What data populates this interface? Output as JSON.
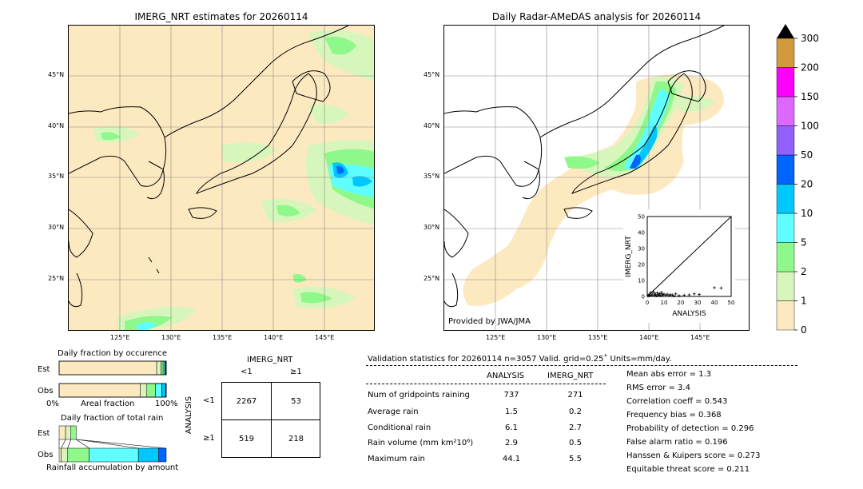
{
  "colors": {
    "ocean": "#fde9c0",
    "land_outline": "#000000",
    "grid": "#888888",
    "scale": [
      "#fde9c0",
      "#d7f6bc",
      "#8ff88a",
      "#5fffff",
      "#00c8ff",
      "#0064ff",
      "#9160ff",
      "#dc68ff",
      "#ff00ff",
      "#d29a3c"
    ]
  },
  "left_map": {
    "title": "IMERG_NRT estimates for 20260114",
    "lat_labels": [
      "45°N",
      "40°N",
      "35°N",
      "30°N",
      "25°N"
    ],
    "lon_labels": [
      "125°E",
      "130°E",
      "135°E",
      "140°E",
      "145°E"
    ]
  },
  "right_map": {
    "title": "Daily Radar-AMeDAS analysis for 20260114",
    "lat_labels": [
      "45°N",
      "40°N",
      "35°N",
      "30°N",
      "25°N"
    ],
    "lon_labels": [
      "125°E",
      "130°E",
      "135°E",
      "140°E",
      "145°E"
    ],
    "credit": "Provided by JWA/JMA"
  },
  "colorbar": {
    "labels": [
      "0",
      "1",
      "2",
      "5",
      "10",
      "20",
      "50",
      "100",
      "150",
      "200",
      "300"
    ]
  },
  "chart_data": [
    {
      "type": "scatter",
      "title": "",
      "xlabel": "ANALYSIS",
      "ylabel": "IMERG_NRT",
      "xlim": [
        0,
        50
      ],
      "ylim": [
        0,
        50
      ],
      "xticks": [
        "0",
        "10",
        "20",
        "30",
        "40",
        "50"
      ],
      "yticks": [
        "0",
        "10",
        "20",
        "30",
        "40",
        "50"
      ],
      "points": [
        [
          0.5,
          0.3
        ],
        [
          1,
          1.2
        ],
        [
          1.5,
          0.5
        ],
        [
          2,
          2.5
        ],
        [
          2.5,
          0.8
        ],
        [
          3,
          1.5
        ],
        [
          3.5,
          3
        ],
        [
          4,
          0.6
        ],
        [
          4.5,
          2
        ],
        [
          5,
          1
        ],
        [
          5.5,
          0.4
        ],
        [
          6,
          2.2
        ],
        [
          6.5,
          1.1
        ],
        [
          7,
          0.7
        ],
        [
          7.5,
          1.8
        ],
        [
          8,
          0.5
        ],
        [
          8.5,
          2.5
        ],
        [
          9,
          1.2
        ],
        [
          9.5,
          0.9
        ],
        [
          10,
          1.5
        ],
        [
          11,
          0.8
        ],
        [
          12,
          1.4
        ],
        [
          13,
          0.6
        ],
        [
          14,
          1.1
        ],
        [
          15,
          0.9
        ],
        [
          16,
          0.3
        ],
        [
          17,
          1.6
        ],
        [
          19,
          0.5
        ],
        [
          22,
          0.8
        ],
        [
          25,
          1
        ],
        [
          28,
          1.6
        ],
        [
          31,
          1.2
        ],
        [
          40,
          5.5
        ],
        [
          44,
          5.2
        ]
      ]
    },
    {
      "type": "bar",
      "title": "Daily fraction by occurence",
      "categories": [
        "Est",
        "Obs"
      ],
      "xlabel": "Areal fraction",
      "x_min_label": "0%",
      "x_max_label": "100%",
      "series": [
        {
          "label": "Est",
          "fractions": [
            0.911,
            0.04,
            0.02,
            0.015,
            0.008,
            0.006
          ]
        },
        {
          "label": "Obs",
          "fractions": [
            0.759,
            0.06,
            0.08,
            0.06,
            0.035,
            0.006
          ]
        }
      ]
    },
    {
      "type": "bar",
      "title": "Daily fraction of total rain",
      "categories": [
        "Est",
        "Obs"
      ],
      "xlabel": "Rainfall accumulation by amount",
      "series": [
        {
          "label": "Est",
          "fractions": [
            0.06,
            0.05,
            0.05,
            0.0
          ]
        },
        {
          "label": "Obs",
          "fractions": [
            0.02,
            0.06,
            0.2,
            0.46,
            0.19,
            0.07
          ]
        }
      ]
    },
    {
      "type": "table",
      "title": "IMERG_NRT",
      "col_labels": [
        "<1",
        "≥1"
      ],
      "row_title": "ANALYSIS",
      "row_labels": [
        "<1",
        "≥1"
      ],
      "cells": [
        [
          "2267",
          "53"
        ],
        [
          "519",
          "218"
        ]
      ]
    }
  ],
  "validation": {
    "header": "Validation statistics for 20260114  n=3057 Valid. grid=0.25˚ Units=mm/day.",
    "col_analysis": "ANALYSIS",
    "col_imerg": "IMERG_NRT",
    "rows": [
      {
        "label": "Num of gridpoints raining",
        "analysis": "737",
        "imerg": "271"
      },
      {
        "label": "Average rain",
        "analysis": "1.5",
        "imerg": "0.2"
      },
      {
        "label": "Conditional rain",
        "analysis": "6.1",
        "imerg": "2.7"
      },
      {
        "label": "Rain volume (mm km²10⁶)",
        "analysis": "2.9",
        "imerg": "0.5"
      },
      {
        "label": "Maximum rain",
        "analysis": "44.1",
        "imerg": "5.5"
      }
    ],
    "scores": [
      "Mean abs error =    1.3",
      "RMS error =    3.4",
      "Correlation coeff =  0.543",
      "Frequency bias =  0.368",
      "Probability of detection =  0.296",
      "False alarm ratio =  0.196",
      "Hanssen & Kuipers score =  0.273",
      "Equitable threat score =  0.211"
    ]
  }
}
